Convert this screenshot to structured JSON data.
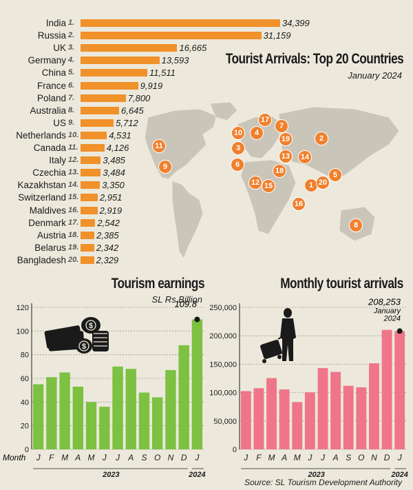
{
  "chart_data": [
    {
      "type": "bar",
      "title": "Tourist Arrivals: Top 20 Countries",
      "subtitle": "January 2024",
      "categories": [
        "India",
        "Russia",
        "UK",
        "Germany",
        "China",
        "France",
        "Poland",
        "Australia",
        "US",
        "Netherlands",
        "Canada",
        "Italy",
        "Czechia",
        "Kazakhstan",
        "Switzerland",
        "Maldives",
        "Denmark",
        "Austria",
        "Belarus",
        "Bangladesh"
      ],
      "ranks": [
        "1.",
        "2.",
        "3.",
        "4.",
        "5.",
        "6.",
        "7.",
        "8.",
        "9.",
        "10.",
        "11.",
        "12.",
        "13.",
        "14.",
        "15.",
        "16.",
        "17.",
        "18.",
        "19.",
        "20."
      ],
      "values": [
        34399,
        31159,
        16665,
        13593,
        11511,
        9919,
        7800,
        6645,
        5712,
        4531,
        4126,
        3485,
        3484,
        3350,
        2951,
        2919,
        2542,
        2385,
        2342,
        2329
      ],
      "value_labels": [
        "34,399",
        "31,159",
        "16,665",
        "13,593",
        "11,511",
        "9,919",
        "7,800",
        "6,645",
        "5,712",
        "4,531",
        "4,126",
        "3,485",
        "3,484",
        "3,350",
        "2,951",
        "2,919",
        "2,542",
        "2,385",
        "2,342",
        "2,329"
      ],
      "bar_color": "#f0912a",
      "map_markers": [
        "1",
        "2",
        "3",
        "4",
        "5",
        "6",
        "7",
        "8",
        "9",
        "10",
        "11",
        "12",
        "13",
        "14",
        "15",
        "16",
        "17",
        "18",
        "19",
        "20"
      ]
    },
    {
      "type": "bar",
      "title": "Tourism earnings",
      "subtitle": "SL Rs Billion",
      "x_prefix": "Month",
      "categories": [
        "J",
        "F",
        "M",
        "A",
        "M",
        "J",
        "J",
        "A",
        "S",
        "O",
        "N",
        "D",
        "J"
      ],
      "years": [
        "2023",
        "2024"
      ],
      "values": [
        55,
        61,
        65,
        53,
        40,
        36,
        70,
        68,
        48,
        44,
        67,
        88,
        109.8
      ],
      "highlight_label": "109.8",
      "ylim": [
        0,
        120
      ],
      "yticks": [
        0,
        20,
        40,
        60,
        80,
        100,
        120
      ],
      "bar_color": "#7cc142"
    },
    {
      "type": "bar",
      "title": "Monthly tourist arrivals",
      "categories": [
        "J",
        "F",
        "M",
        "A",
        "M",
        "J",
        "J",
        "A",
        "S",
        "O",
        "N",
        "D",
        "J"
      ],
      "years": [
        "2023",
        "2024"
      ],
      "values": [
        102545,
        107639,
        125495,
        105498,
        83309,
        100388,
        143039,
        136405,
        111938,
        109199,
        151496,
        210352,
        208253
      ],
      "highlight_label": "208,253",
      "highlight_sub": "January\n2024",
      "ylim": [
        0,
        250000
      ],
      "yticks": [
        "0",
        "50,000",
        "100,000",
        "150,000",
        "200,000",
        "250,000"
      ],
      "ytick_values": [
        0,
        50000,
        100000,
        150000,
        200000,
        250000
      ],
      "bar_color": "#ef7689"
    }
  ],
  "source": "Source: SL Tourism Development Authority",
  "colors": {
    "background": "#ece9dc",
    "map": "#c9c5b9",
    "marker": "#f0802c"
  }
}
